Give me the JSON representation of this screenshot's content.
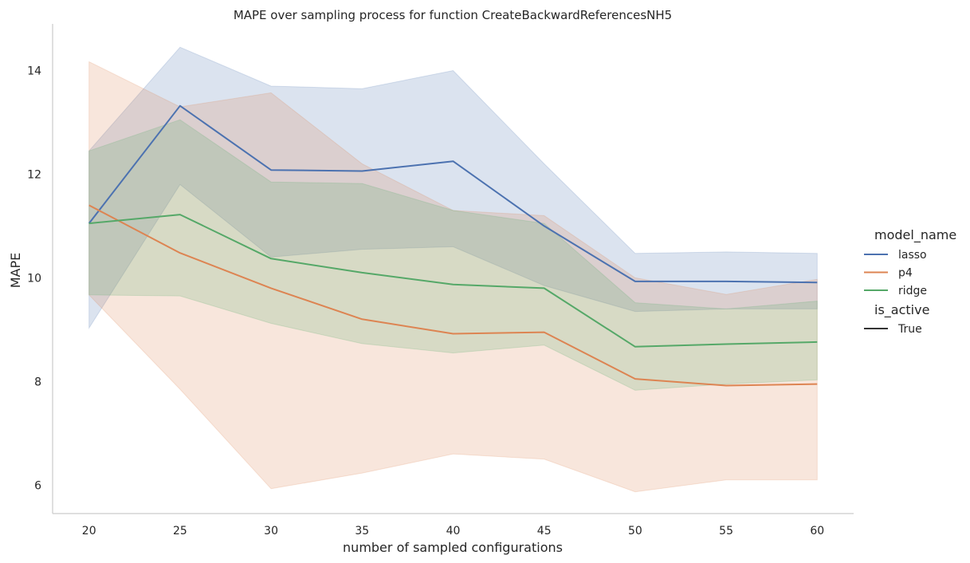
{
  "chart_data": {
    "type": "line",
    "title": "MAPE over sampling process for function CreateBackwardReferencesNH5",
    "xlabel": "number of sampled configurations",
    "ylabel": "MAPE",
    "x": [
      20,
      25,
      30,
      35,
      40,
      45,
      50,
      55,
      60
    ],
    "xlim": [
      18,
      62
    ],
    "ylim": [
      5.45,
      14.9
    ],
    "xticks": [
      "20",
      "25",
      "30",
      "35",
      "40",
      "45",
      "50",
      "55",
      "60"
    ],
    "yticks": [
      "6",
      "8",
      "10",
      "12",
      "14"
    ],
    "grid": false,
    "series": [
      {
        "name": "lasso",
        "color": "#4c72b0",
        "values": [
          11.05,
          13.32,
          12.08,
          12.06,
          12.25,
          11.0,
          9.93,
          9.93,
          9.91
        ],
        "ci_low": [
          9.03,
          11.8,
          10.4,
          10.55,
          10.6,
          9.85,
          9.35,
          9.4,
          9.4
        ],
        "ci_high": [
          12.45,
          14.45,
          13.7,
          13.65,
          14.0,
          12.2,
          10.47,
          10.5,
          10.47
        ]
      },
      {
        "name": "p4",
        "color": "#dd8452",
        "values": [
          11.4,
          10.48,
          9.8,
          9.2,
          8.92,
          8.95,
          8.05,
          7.92,
          7.95
        ],
        "ci_low": [
          9.67,
          7.85,
          5.93,
          6.23,
          6.6,
          6.5,
          5.87,
          6.1,
          6.1
        ],
        "ci_high": [
          14.17,
          13.3,
          13.57,
          12.2,
          11.3,
          11.2,
          10.0,
          9.68,
          9.97
        ]
      },
      {
        "name": "ridge",
        "color": "#55a868",
        "values": [
          11.05,
          11.22,
          10.37,
          10.1,
          9.87,
          9.8,
          8.67,
          8.72,
          8.76
        ],
        "ci_low": [
          9.67,
          9.65,
          9.12,
          8.73,
          8.55,
          8.7,
          7.83,
          7.95,
          8.03
        ],
        "ci_high": [
          12.45,
          13.05,
          11.85,
          11.82,
          11.3,
          11.05,
          9.52,
          9.4,
          9.55
        ]
      }
    ],
    "legend": {
      "placement": "right",
      "hue_title": "model_name",
      "style_title": "is_active",
      "style_entry": "True",
      "style_color": "#333333"
    }
  }
}
